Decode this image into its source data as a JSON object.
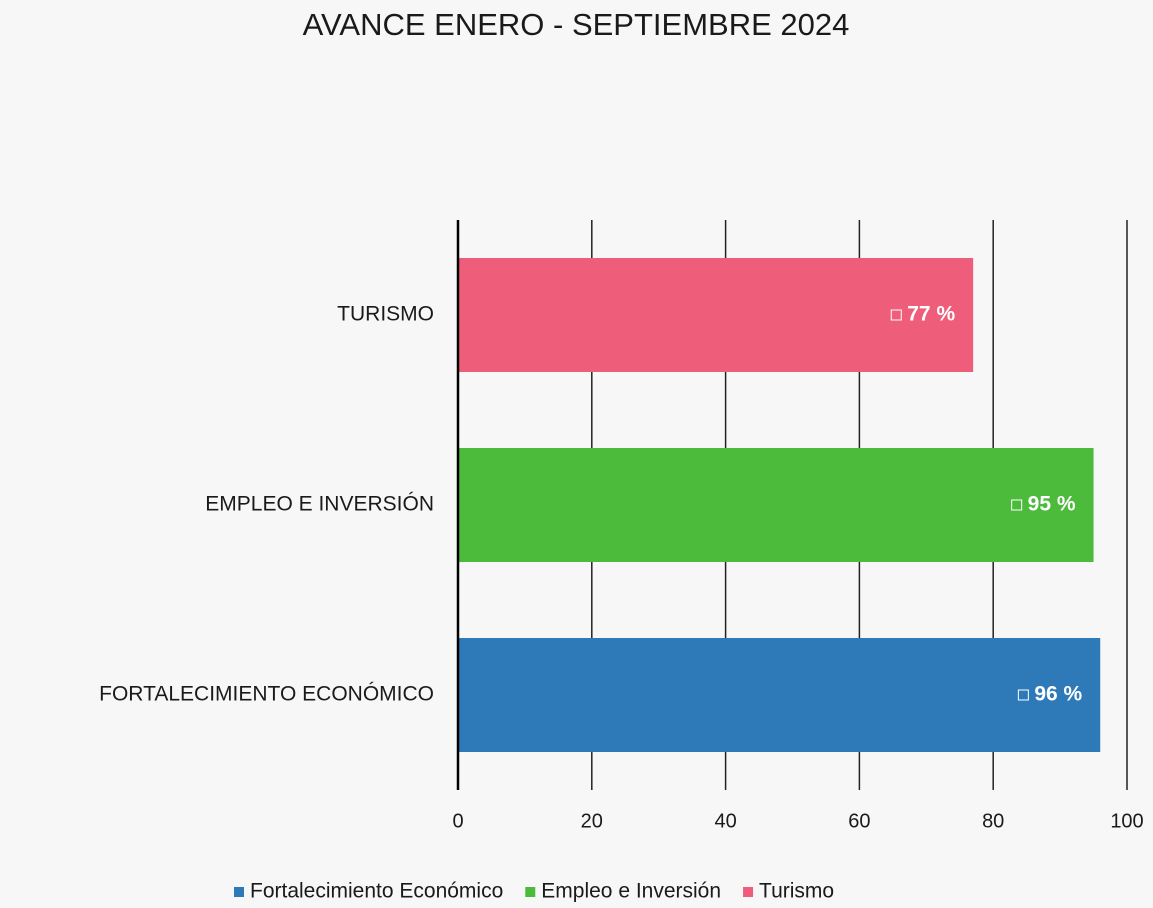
{
  "chart_data": {
    "type": "bar",
    "orientation": "horizontal",
    "title": "AVANCE ENERO - SEPTIEMBRE 2024",
    "categories": [
      "FORTALECIMIENTO ECONÓMICO",
      "EMPLEO E INVERSIÓN",
      "TURISMO"
    ],
    "series": [
      {
        "name": "Fortalecimiento Económico",
        "color": "#2e7ab8",
        "values": [
          96,
          null,
          null
        ],
        "value_labels": [
          "96 %",
          null,
          null
        ]
      },
      {
        "name": "Empleo e Inversión",
        "color": "#4cbb3c",
        "values": [
          null,
          95,
          null
        ],
        "value_labels": [
          null,
          "95 %",
          null
        ]
      },
      {
        "name": "Turismo",
        "color": "#ee5e7b",
        "values": [
          null,
          null,
          77
        ],
        "value_labels": [
          null,
          null,
          "77 %"
        ]
      }
    ],
    "xlim": [
      0,
      100
    ],
    "xticks": [
      0,
      20,
      40,
      60,
      80,
      100
    ],
    "grid": true,
    "legend": "bottom"
  }
}
